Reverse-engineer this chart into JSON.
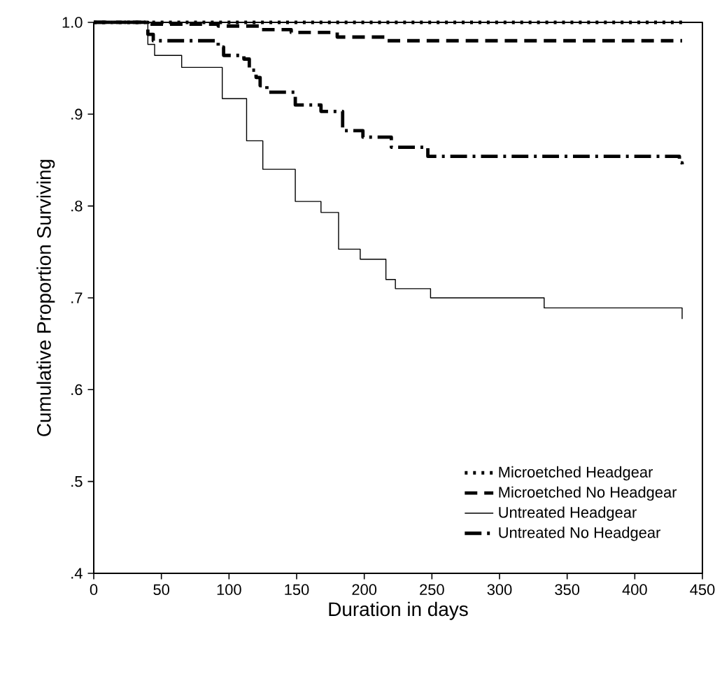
{
  "chart_data": {
    "type": "step",
    "xlabel": "Duration in days",
    "ylabel": "Cumulative Proportion Surviving",
    "xlim": [
      0,
      450
    ],
    "xticks": [
      0,
      50,
      100,
      150,
      200,
      250,
      300,
      350,
      400,
      450
    ],
    "ylim": [
      0.4,
      1.0
    ],
    "yticks": [
      {
        "value": 0.4,
        "label": ".4"
      },
      {
        "value": 0.5,
        "label": ".5"
      },
      {
        "value": 0.6,
        "label": ".6"
      },
      {
        "value": 0.7,
        "label": ".7"
      },
      {
        "value": 0.8,
        "label": ".8"
      },
      {
        "value": 0.9,
        "label": ".9"
      },
      {
        "value": 1.0,
        "label": "1.0"
      }
    ],
    "grid": false,
    "legend": "bottom right",
    "marker": "none",
    "series": [
      {
        "name": "Microetched Headgear",
        "color": "#000000",
        "line_style": "dotted",
        "x": [
          0,
          435
        ],
        "values": [
          1.0,
          1.0
        ]
      },
      {
        "name": "Microetched No Headgear",
        "color": "#000000",
        "line_style": "dashed",
        "x": [
          0,
          40,
          92,
          123,
          146,
          180,
          216,
          435
        ],
        "values": [
          1.0,
          0.998,
          0.996,
          0.992,
          0.989,
          0.984,
          0.98,
          0.98
        ]
      },
      {
        "name": "Untreated Headgear",
        "color": "#000000",
        "line_style": "solid",
        "x": [
          0,
          40,
          45,
          65,
          95,
          113,
          125,
          149,
          168,
          181,
          197,
          216,
          223,
          249,
          333,
          435,
          435
        ],
        "values": [
          1.0,
          0.976,
          0.964,
          0.951,
          0.917,
          0.871,
          0.84,
          0.805,
          0.793,
          0.753,
          0.742,
          0.72,
          0.71,
          0.7,
          0.689,
          0.689,
          0.677
        ]
      },
      {
        "name": "Untreated No Headgear",
        "color": "#000000",
        "line_style": "dashdot",
        "x": [
          0,
          40,
          44,
          92,
          96,
          111,
          115,
          120,
          123,
          128,
          149,
          168,
          184,
          199,
          220,
          247,
          433,
          435
        ],
        "values": [
          1.0,
          0.987,
          0.98,
          0.973,
          0.964,
          0.96,
          0.948,
          0.94,
          0.931,
          0.924,
          0.91,
          0.903,
          0.882,
          0.875,
          0.864,
          0.854,
          0.847,
          0.843
        ]
      }
    ]
  }
}
